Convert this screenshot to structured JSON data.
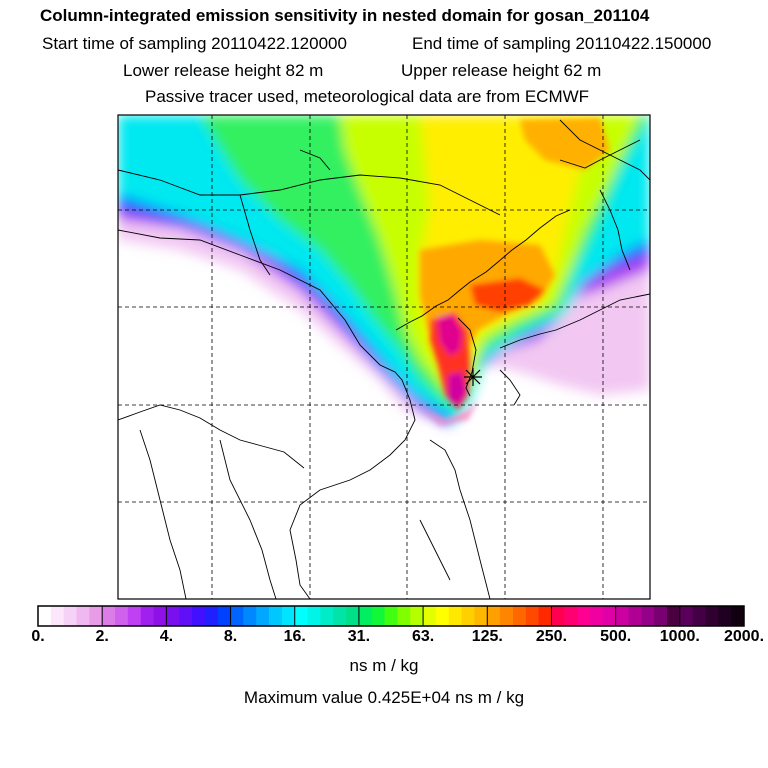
{
  "header": {
    "title": "Column-integrated emission sensitivity in nested domain for gosan_201104",
    "start_label": "Start time of sampling 20110422.120000",
    "end_label": "End time of sampling 20110422.150000",
    "lower_label": "Lower release height   82 m",
    "upper_label": "Upper release height   62 m",
    "tracer_note": "Passive tracer used, meteorological data are from ECMWF"
  },
  "chart_data": {
    "type": "heatmap",
    "title": "Column-integrated emission sensitivity in nested domain for gosan_201104",
    "colorbar": {
      "tick_labels": [
        "0.",
        "2.",
        "4.",
        "8.",
        "16.",
        "31.",
        "63.",
        "125.",
        "250.",
        "500.",
        "1000.",
        "2000."
      ],
      "tick_values": [
        0,
        2,
        4,
        8,
        16,
        31,
        63,
        125,
        250,
        500,
        1000,
        2000
      ],
      "units": "ns m / kg",
      "colors": [
        [
          "#ffffff",
          "#fbe6fb",
          "#f7d2f7",
          "#f0b8f0",
          "#e89ce8"
        ],
        [
          "#dc7ce6",
          "#d060ee",
          "#c040f4",
          "#a020f0",
          "#9010e8"
        ],
        [
          "#7a10f0",
          "#6010f8",
          "#4010ff",
          "#2020ff",
          "#0040ff"
        ],
        [
          "#0064ff",
          "#0088ff",
          "#00a8ff",
          "#00c8ff",
          "#00e4ff"
        ],
        [
          "#00ffff",
          "#00f4e8",
          "#00ecc8",
          "#00e4a8",
          "#00e088"
        ],
        [
          "#00ee60",
          "#10f838",
          "#40ff10",
          "#80ff00",
          "#b4ff00"
        ],
        [
          "#e4ff00",
          "#ffff00",
          "#ffe800",
          "#ffd000",
          "#ffb800"
        ],
        [
          "#ffa000",
          "#ff8400",
          "#ff6800",
          "#ff4800",
          "#ff2800"
        ],
        [
          "#ff0050",
          "#ff0070",
          "#ff0090",
          "#f000a0",
          "#e000a8"
        ],
        [
          "#cc00a0",
          "#b00094",
          "#940088",
          "#780070",
          "#4a0040"
        ],
        [
          "#5a005a",
          "#440044",
          "#300030",
          "#200020",
          "#100010"
        ]
      ]
    },
    "max_value_text": "Maximum value  0.425E+04 ns m / kg",
    "grid": true,
    "receptor_marker": "asterisk"
  }
}
